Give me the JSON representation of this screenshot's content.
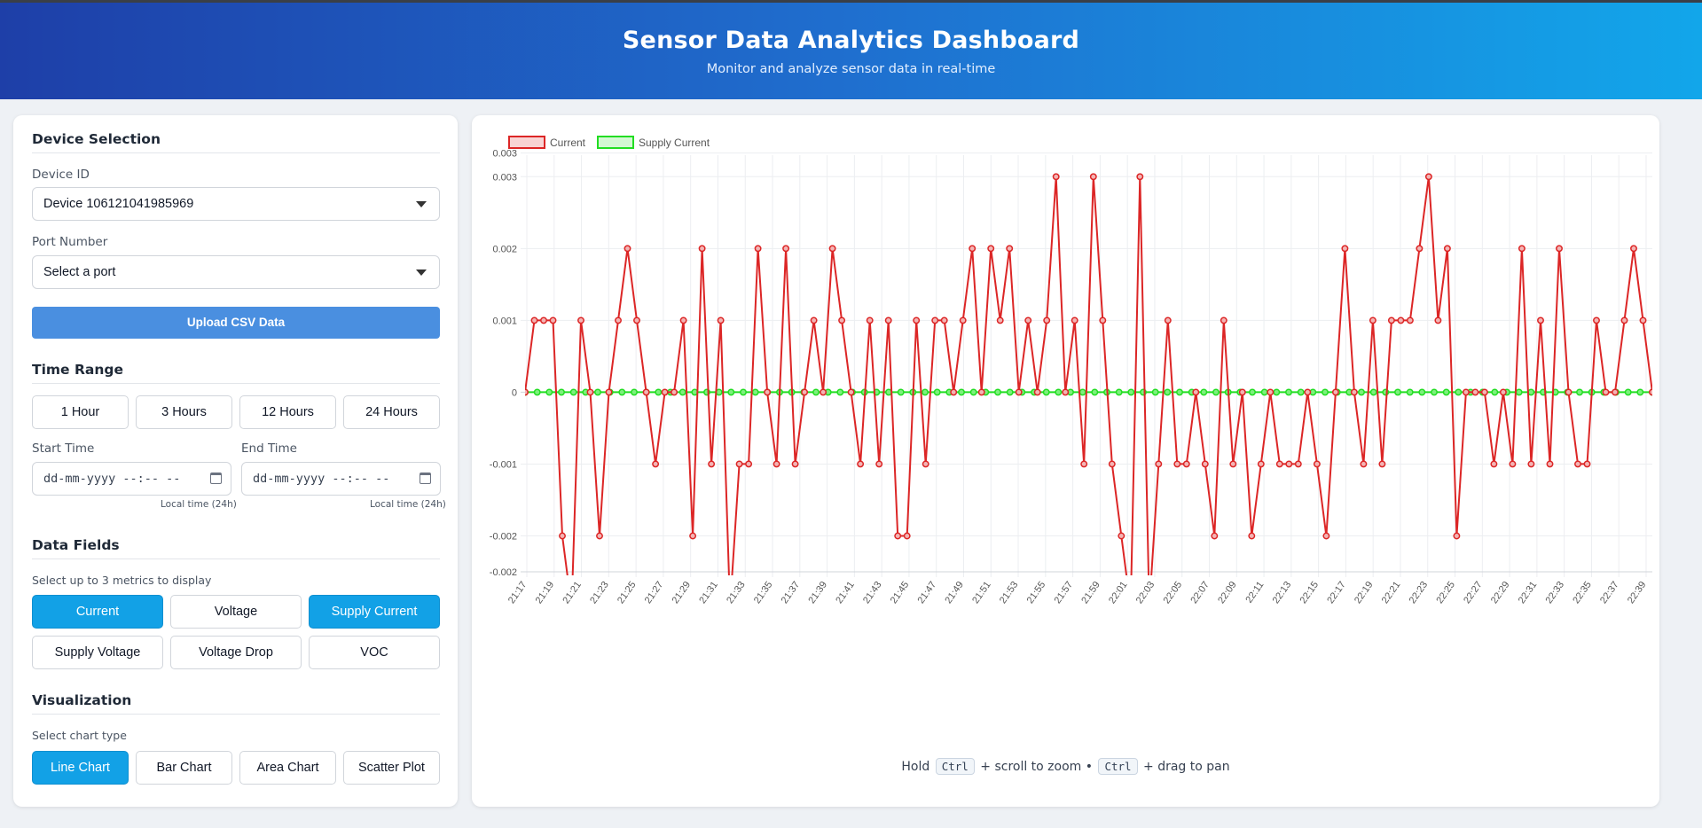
{
  "header": {
    "title": "Sensor Data Analytics Dashboard",
    "subtitle": "Monitor and analyze sensor data in real-time"
  },
  "sidebar": {
    "device_section": "Device Selection",
    "device_label": "Device ID",
    "device_value": "Device 106121041985969",
    "port_label": "Port Number",
    "port_value": "Select a port",
    "upload_label": "Upload CSV Data",
    "time_section": "Time Range",
    "time_buttons": [
      "1 Hour",
      "3 Hours",
      "12 Hours",
      "24 Hours"
    ],
    "start_label": "Start Time",
    "end_label": "End Time",
    "start_placeholder": "dd-mm-yyyy --:-- --",
    "end_placeholder": "dd-mm-yyyy --:-- --",
    "local_time_note": "Local time (24h)",
    "fields_section": "Data Fields",
    "fields_hint": "Select up to 3 metrics to display",
    "fields": [
      {
        "label": "Current",
        "active": true
      },
      {
        "label": "Voltage",
        "active": false
      },
      {
        "label": "Supply Current",
        "active": true
      },
      {
        "label": "Supply Voltage",
        "active": false
      },
      {
        "label": "Voltage Drop",
        "active": false
      },
      {
        "label": "VOC",
        "active": false
      }
    ],
    "viz_section": "Visualization",
    "viz_hint": "Select chart type",
    "chart_types": [
      {
        "label": "Line Chart",
        "active": true
      },
      {
        "label": "Bar Chart",
        "active": false
      },
      {
        "label": "Area Chart",
        "active": false
      },
      {
        "label": "Scatter Plot",
        "active": false
      }
    ]
  },
  "help": {
    "hold": "Hold",
    "key": "Ctrl",
    "zoom": "+ scroll to zoom •",
    "pan": "+ drag to pan"
  },
  "colors": {
    "current": "#dc2626",
    "supply_current": "#22dd22",
    "active_button": "#12a1e6",
    "upload_button": "#4a8fe0"
  },
  "chart_data": {
    "type": "line",
    "x_labels": [
      "21:17",
      "21:19",
      "21:21",
      "21:23",
      "21:25",
      "21:27",
      "21:29",
      "21:31",
      "21:33",
      "21:35",
      "21:37",
      "21:39",
      "21:41",
      "21:43",
      "21:45",
      "21:47",
      "21:49",
      "21:51",
      "21:53",
      "21:55",
      "21:57",
      "21:59",
      "22:01",
      "22:03",
      "22:05",
      "22:07",
      "22:09",
      "22:11",
      "22:13",
      "22:15",
      "22:17",
      "22:19",
      "22:21",
      "22:23",
      "22:25",
      "22:27",
      "22:29",
      "22:31",
      "22:33",
      "22:35",
      "22:37",
      "22:39"
    ],
    "y_ticks": [
      "0.003",
      "0.003",
      "0.002",
      "0.001",
      "0",
      "-0.001",
      "-0.002",
      "-0.002"
    ],
    "ylim": [
      -0.0025,
      0.0033
    ],
    "legend": "top-center",
    "grid": true,
    "series": [
      {
        "name": "Current",
        "color": "#dc2626",
        "values": [
          0,
          0.001,
          0.001,
          0.001,
          -0.002,
          -0.003,
          0.001,
          0,
          -0.002,
          0,
          0.001,
          0.002,
          0.001,
          0,
          -0.001,
          0,
          0,
          0.001,
          -0.002,
          0.002,
          -0.001,
          0.001,
          -0.003,
          -0.001,
          -0.001,
          0.002,
          0,
          -0.001,
          0.002,
          -0.001,
          0,
          0.001,
          0,
          0.002,
          0.001,
          0,
          -0.001,
          0.001,
          -0.001,
          0.001,
          -0.002,
          -0.002,
          0.001,
          -0.001,
          0.001,
          0.001,
          0,
          0.001,
          0.002,
          0,
          0.002,
          0.001,
          0.002,
          0,
          0.001,
          0,
          0.001,
          0.003,
          0,
          0.001,
          -0.001,
          0.003,
          0.001,
          -0.001,
          -0.002,
          -0.003,
          0.003,
          -0.003,
          -0.001,
          0.001,
          -0.001,
          -0.001,
          0,
          -0.001,
          -0.002,
          0.001,
          -0.001,
          0,
          -0.002,
          -0.001,
          0,
          -0.001,
          -0.001,
          -0.001,
          0,
          -0.001,
          -0.002,
          0,
          0.002,
          0,
          -0.001,
          0.001,
          -0.001,
          0.001,
          0.001,
          0.001,
          0.002,
          0.003,
          0.001,
          0.002,
          -0.002,
          0,
          0,
          0,
          -0.001,
          0,
          -0.001,
          0.002,
          -0.001,
          0.001,
          -0.001,
          0.002,
          0,
          -0.001,
          -0.001,
          0.001,
          0,
          0,
          0.001,
          0.002,
          0.001,
          0
        ]
      },
      {
        "name": "Supply Current",
        "color": "#22dd22",
        "values": [
          0,
          0,
          0,
          0,
          0,
          0,
          0,
          0,
          0,
          0,
          0,
          0,
          0,
          0,
          0,
          0,
          0,
          0,
          0,
          0,
          0,
          0,
          0,
          0,
          0,
          0,
          0,
          0,
          0,
          0,
          0,
          0,
          0,
          0,
          0,
          0,
          0,
          0,
          0,
          0,
          0,
          0,
          0,
          0,
          0,
          0,
          0,
          0,
          0,
          0,
          0,
          0,
          0,
          0,
          0,
          0,
          0,
          0,
          0,
          0,
          0,
          0,
          0,
          0,
          0,
          0,
          0,
          0,
          0,
          0,
          0,
          0,
          0,
          0,
          0,
          0,
          0,
          0,
          0,
          0,
          0,
          0,
          0,
          0,
          0,
          0,
          0,
          0,
          0,
          0,
          0,
          0,
          0,
          0
        ]
      }
    ]
  }
}
